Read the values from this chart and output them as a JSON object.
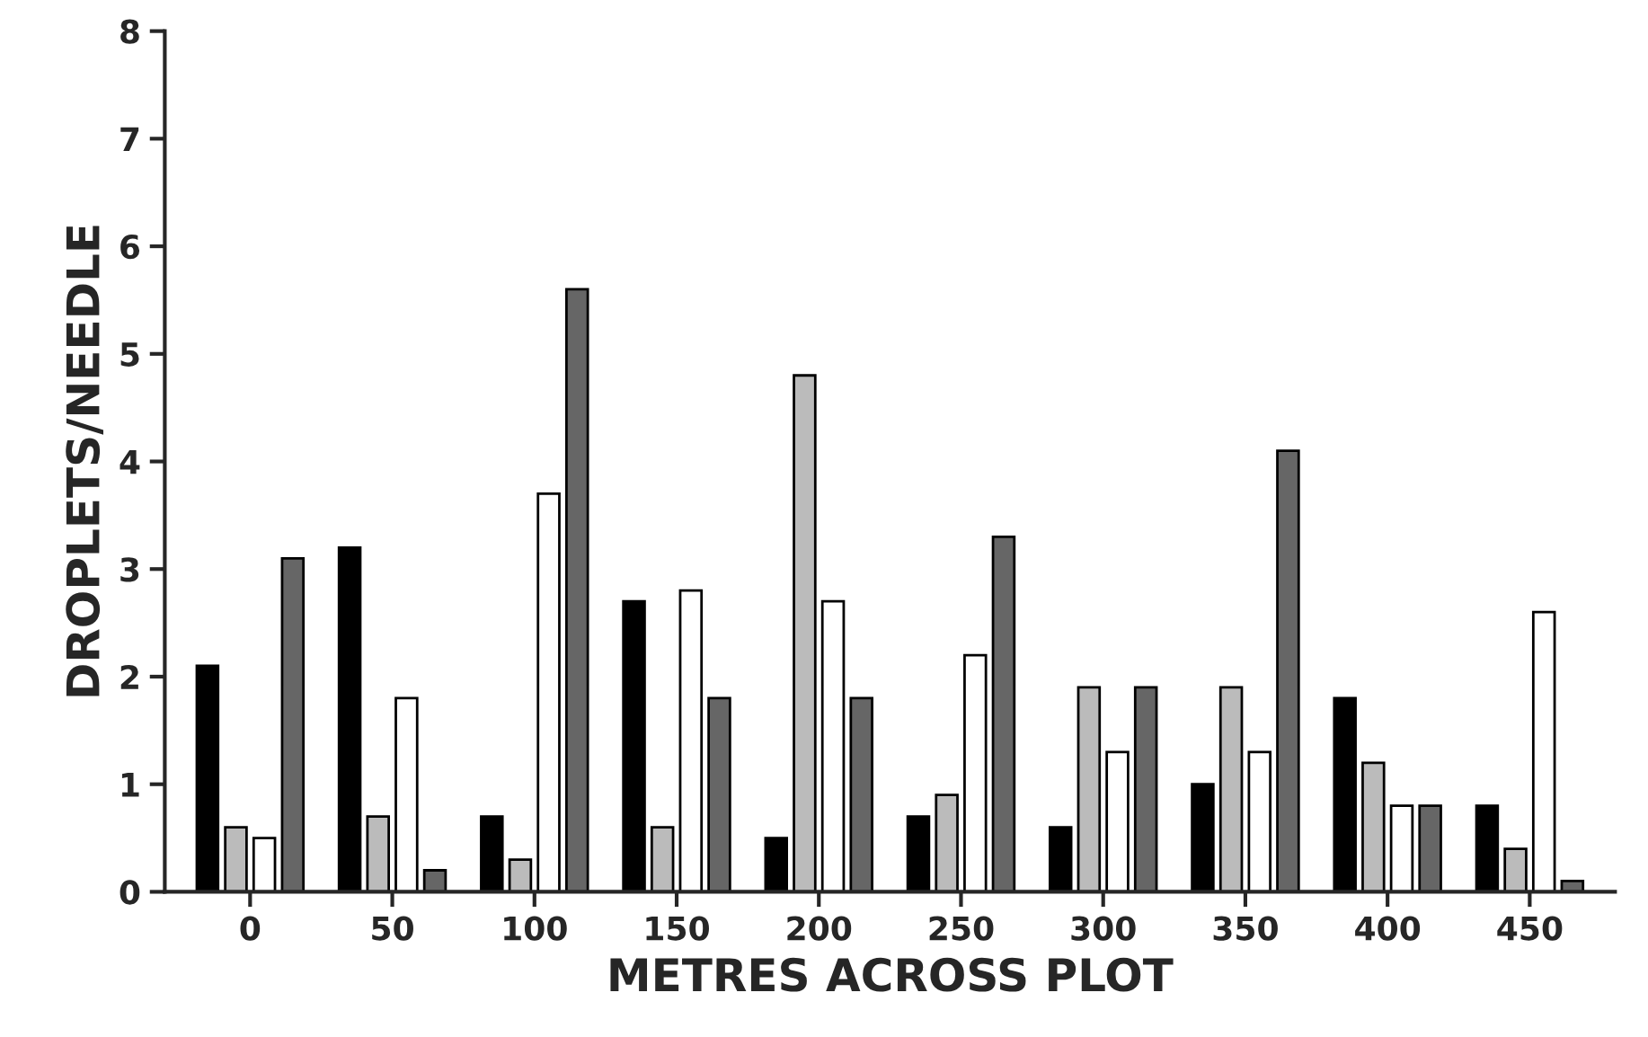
{
  "chart_data": {
    "type": "bar",
    "xlabel": "METRES ACROSS PLOT",
    "ylabel": "DROPLETS/NEEDLE",
    "categories": [
      "0",
      "50",
      "100",
      "150",
      "200",
      "250",
      "300",
      "350",
      "400",
      "450"
    ],
    "series": [
      {
        "color": "#000000",
        "values": [
          2.1,
          3.2,
          0.7,
          2.7,
          0.5,
          0.7,
          0.6,
          1.0,
          1.8,
          0.8
        ]
      },
      {
        "color": "#bbbbbb",
        "values": [
          0.6,
          0.7,
          0.3,
          0.6,
          4.8,
          0.9,
          1.9,
          1.9,
          1.2,
          0.4
        ]
      },
      {
        "color": "#ffffff",
        "values": [
          0.5,
          1.8,
          3.7,
          2.8,
          2.7,
          2.2,
          1.3,
          1.3,
          0.8,
          2.6
        ]
      },
      {
        "color": "#666666",
        "values": [
          3.1,
          0.2,
          5.6,
          1.8,
          1.8,
          3.3,
          1.9,
          4.1,
          0.8,
          0.1
        ]
      }
    ],
    "ylim": [
      0,
      8
    ],
    "yticks": [
      0,
      1,
      2,
      3,
      4,
      5,
      6,
      7,
      8
    ],
    "grid": false
  }
}
